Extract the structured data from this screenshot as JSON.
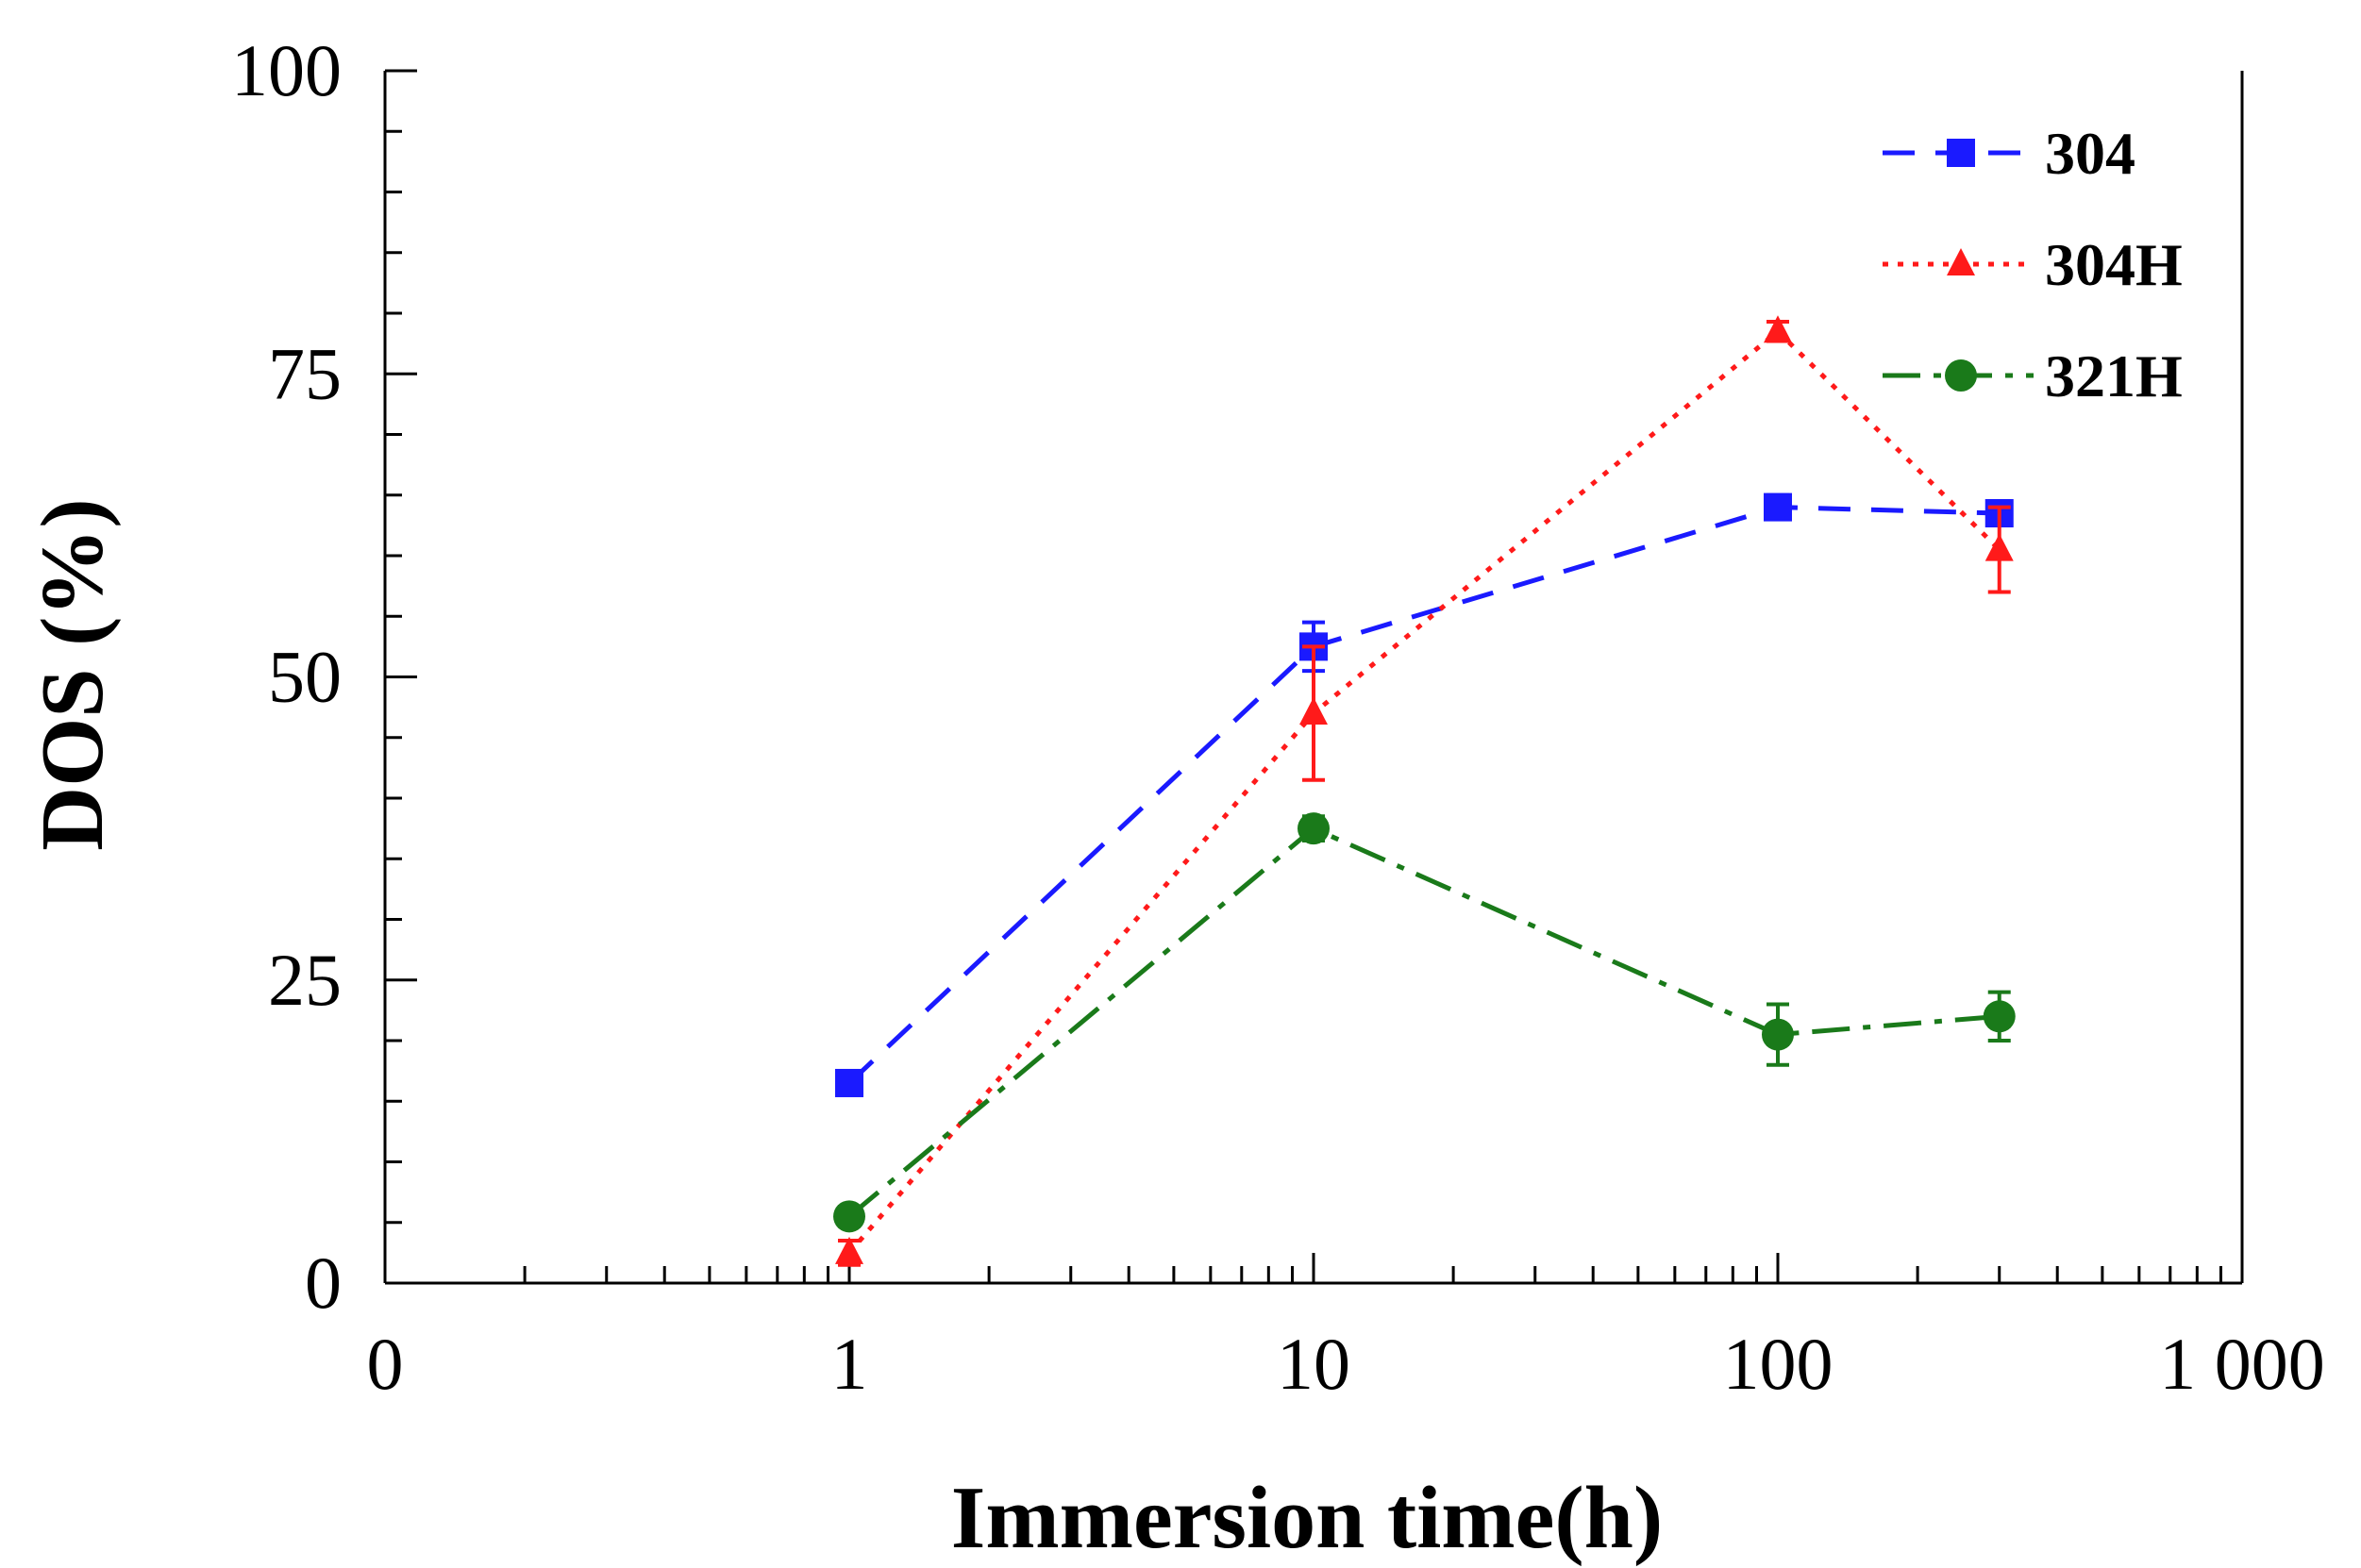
{
  "chart_data": {
    "type": "line",
    "xscale": "log",
    "xlabel": "Immersion time(h)",
    "ylabel": "DOS (%)",
    "ylim": [
      0,
      100
    ],
    "xlim_decades": [
      -1,
      3
    ],
    "x_tick_labels": [
      "0",
      "1",
      "10",
      "100",
      "1 000"
    ],
    "y_tick_labels": [
      "0",
      "25",
      "50",
      "75",
      "100"
    ],
    "y_ticks": [
      0,
      25,
      50,
      75,
      100
    ],
    "legend_position": "top-right",
    "series": [
      {
        "name": "304",
        "color": "#1a1aff",
        "marker": "square",
        "line_style": "dashed",
        "x": [
          1,
          10,
          100,
          300
        ],
        "y": [
          16.5,
          52.5,
          64,
          63.5
        ],
        "err": [
          0.8,
          2.0,
          1.0,
          1.0
        ]
      },
      {
        "name": "304H",
        "color": "#ff1a1a",
        "marker": "triangle",
        "line_style": "dotted",
        "x": [
          1,
          10,
          100,
          300
        ],
        "y": [
          2.5,
          47,
          78.5,
          60.5
        ],
        "err": [
          1.0,
          5.5,
          0.8,
          3.5
        ]
      },
      {
        "name": "321H",
        "color": "#1a7a1a",
        "marker": "circle",
        "line_style": "dash-dot",
        "x": [
          1,
          10,
          100,
          300
        ],
        "y": [
          5.5,
          37.5,
          20.5,
          22
        ],
        "err": [
          0.8,
          1.0,
          2.5,
          2.0
        ]
      }
    ]
  }
}
